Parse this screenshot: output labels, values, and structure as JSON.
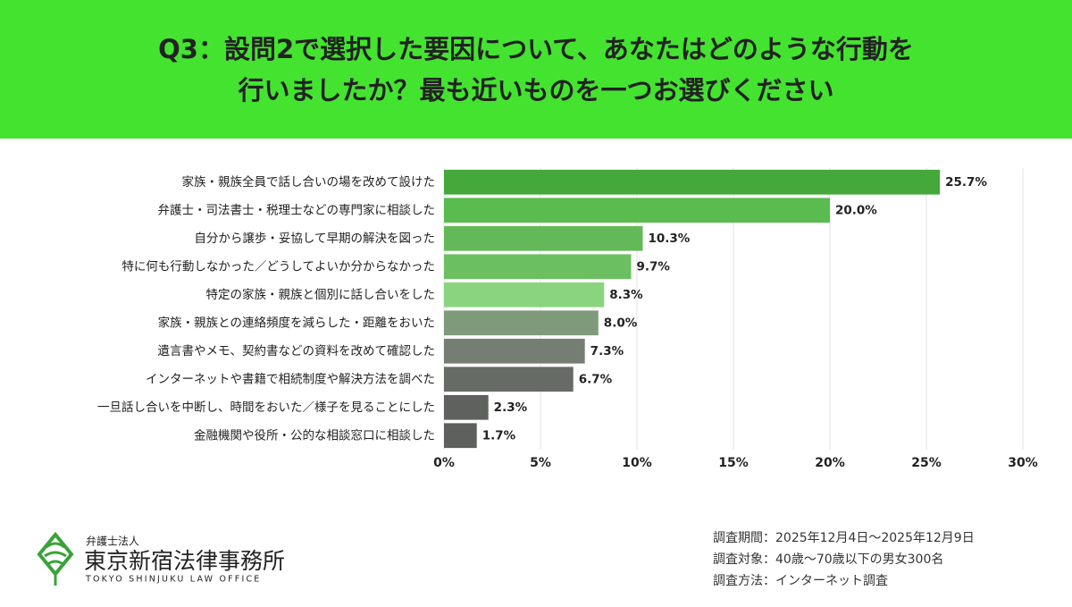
{
  "header": {
    "title": [
      "Q3：設問2で選択した要因について、あなたはどのような行動を",
      "行いましたか？最も近いものを一つお選びください"
    ]
  },
  "chart_data": {
    "type": "hbar",
    "categories": [
      "家族・親族全員で話し合いの場を改めて設けた",
      "弁護士・司法書士・税理士などの専門家に相談した",
      "自分から譲歩・妥協して早期の解決を図った",
      "特に何も行動しなかった／どうしてよいか分からなかった",
      "特定の家族・親族と個別に話し合いをした",
      "家族・親族との連絡頻度を減らした・距離をおいた",
      "遺言書やメモ、契約書などの資料を改めて確認した",
      "インターネットや書籍で相続制度や解決方法を調べた",
      "一旦話し合いを中断し、時間をおいた／様子を見ることにした",
      "金融機関や役所・公的な相談窓口に相談した"
    ],
    "values": [
      25.7,
      20.0,
      10.3,
      9.7,
      8.3,
      8.0,
      7.3,
      6.7,
      2.3,
      1.7
    ],
    "value_labels": [
      "25.7%",
      "20.0%",
      "10.3%",
      "9.7%",
      "8.3%",
      "8.0%",
      "7.3%",
      "6.7%",
      "2.3%",
      "1.7%"
    ],
    "colors": [
      "#45a83b",
      "#5abb4e",
      "#63b958",
      "#6cbf60",
      "#8bd47f",
      "#7f9a7a",
      "#767e74",
      "#676b66",
      "#5f615e",
      "#5e605d"
    ],
    "xlim": [
      0,
      30
    ],
    "xticks": [
      {
        "value": 0,
        "label": "0%"
      },
      {
        "value": 5,
        "label": "5%"
      },
      {
        "value": 10,
        "label": "10%"
      },
      {
        "value": 15,
        "label": "15%"
      },
      {
        "value": 20,
        "label": "20%"
      },
      {
        "value": 25,
        "label": "25%"
      },
      {
        "value": 30,
        "label": "30%"
      }
    ],
    "grid": true
  },
  "logo": {
    "sub": "弁護士法人",
    "name": "東京新宿法律事務所",
    "english": "TOKYO SHINJUKU LAW OFFICE"
  },
  "notes": [
    "調査期間：2025年12月4日～2025年12月9日",
    "調査対象：40歳～70歳以下の男女300名",
    "調査方法：インターネット調査"
  ]
}
